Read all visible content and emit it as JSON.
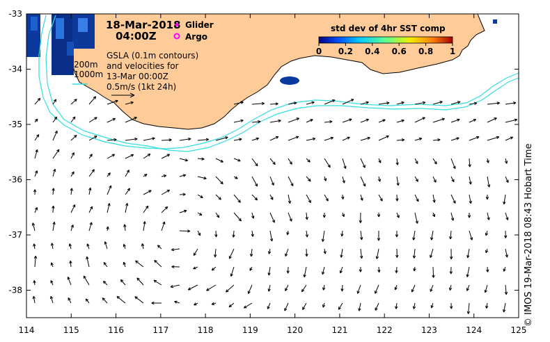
{
  "map": {
    "date": "18-Mar-2018",
    "time": "04:00Z",
    "legend": {
      "glider": "Glider",
      "argo": "Argo",
      "glider_color": "#ff00ff",
      "argo_color": "#ff00ff"
    },
    "contours": {
      "depth_a": "200m",
      "depth_b": "1000m",
      "color": "#33dde0"
    },
    "info_lines": [
      "GSLA (0.1m contours)",
      "and velocities for",
      "13-Mar 00:00Z",
      "0.5m/s (1kt 24h)"
    ],
    "colorbar": {
      "title": "std dev of 4hr SST comp",
      "ticks": [
        "0",
        "0.2",
        "0.4",
        "0.6",
        "0.8",
        "1"
      ],
      "colors": [
        "#000080",
        "#0050ff",
        "#00c8ff",
        "#60ff90",
        "#f0f000",
        "#ff8000",
        "#a00000"
      ]
    },
    "land_color": "#ffcc99",
    "credit": "© IMOS 19-Mar-2018 08:43 Hobart Time",
    "x_ticks": [
      "114",
      "115",
      "116",
      "117",
      "118",
      "119",
      "120",
      "121",
      "122",
      "123",
      "124",
      "125"
    ],
    "y_ticks": [
      "-33",
      "-34",
      "-35",
      "-36",
      "-37",
      "-38"
    ]
  }
}
